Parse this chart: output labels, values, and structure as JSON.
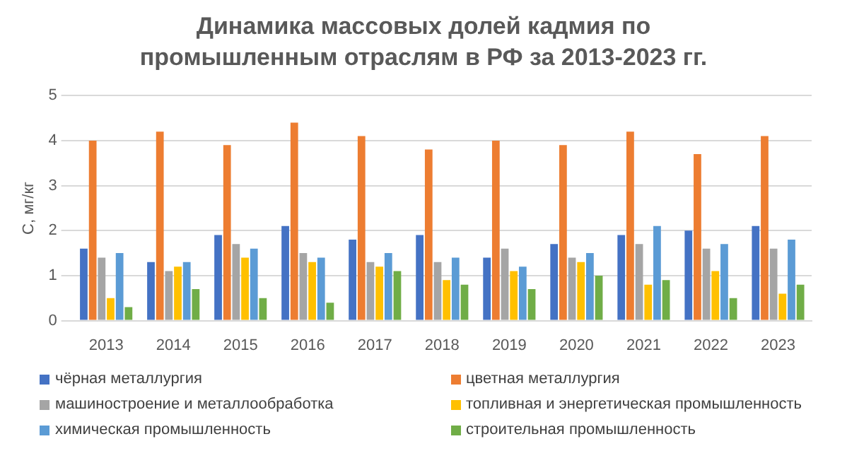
{
  "chart_data": {
    "type": "bar",
    "title": "Динамика массовых долей кадмия по промышленным отраслям в РФ за 2013-2023 гг.",
    "ylabel": "C, мг/кг",
    "categories": [
      "2013",
      "2014",
      "2015",
      "2016",
      "2017",
      "2018",
      "2019",
      "2020",
      "2021",
      "2022",
      "2023"
    ],
    "series": [
      {
        "name": "чёрная металлургия",
        "color": "#4472c4",
        "values": [
          1.6,
          1.3,
          1.9,
          2.1,
          1.8,
          1.9,
          1.4,
          1.7,
          1.9,
          2.0,
          2.1
        ]
      },
      {
        "name": "цветная металлургия",
        "color": "#ed7d31",
        "values": [
          4.0,
          4.2,
          3.9,
          4.4,
          4.1,
          3.8,
          4.0,
          3.9,
          4.2,
          3.7,
          4.1
        ]
      },
      {
        "name": "машиностроение и металлообработка",
        "color": "#a5a5a5",
        "values": [
          1.4,
          1.1,
          1.7,
          1.5,
          1.3,
          1.3,
          1.6,
          1.4,
          1.7,
          1.6,
          1.6
        ]
      },
      {
        "name": "топливная и энергетическая промышленность",
        "color": "#ffc000",
        "values": [
          0.5,
          1.2,
          1.4,
          1.3,
          1.2,
          0.9,
          1.1,
          1.3,
          0.8,
          1.1,
          0.6
        ]
      },
      {
        "name": "химическая промышленность",
        "color": "#5b9bd5",
        "values": [
          1.5,
          1.3,
          1.6,
          1.4,
          1.5,
          1.4,
          1.2,
          1.5,
          2.1,
          1.7,
          1.8
        ]
      },
      {
        "name": "строительная промышленность",
        "color": "#70ad47",
        "values": [
          0.3,
          0.7,
          0.5,
          0.4,
          1.1,
          0.8,
          0.7,
          1.0,
          0.9,
          0.5,
          0.8
        ]
      }
    ],
    "ylim": [
      0,
      5
    ],
    "yticks": [
      0,
      1,
      2,
      3,
      4,
      5
    ],
    "grid": "y",
    "legend": "bottom"
  }
}
